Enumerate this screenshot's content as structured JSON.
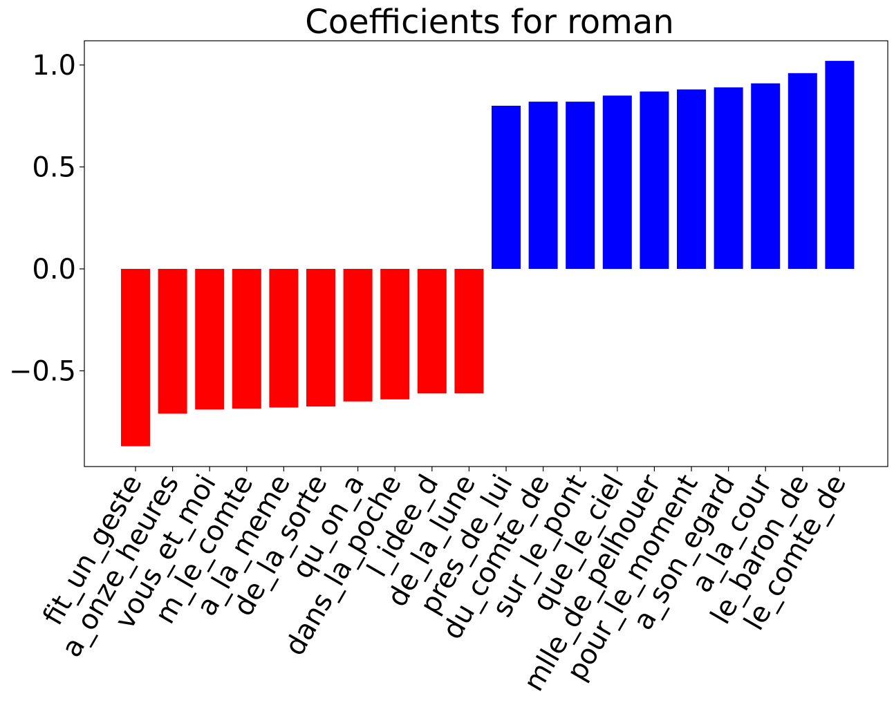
{
  "chart_data": {
    "type": "bar",
    "title": "Coefficients for roman",
    "xlabel": "",
    "ylabel": "",
    "ylim": [
      -0.97,
      1.12
    ],
    "yticks": [
      1.0,
      0.5,
      0.0,
      -0.5
    ],
    "ytick_labels": [
      "1.0",
      "0.5",
      "0.0",
      "−0.5"
    ],
    "grid": false,
    "colors": {
      "negative": "#ff0000",
      "positive": "#0000ff"
    },
    "categories": [
      "fit_un_geste",
      "a_onze_heures",
      "vous_et_moi",
      "m_le_comte",
      "a_la_meme",
      "de_la_sorte",
      "qu_on_a",
      "dans_la_poche",
      "l_idee_d",
      "de_la_lune",
      "pres_de_lui",
      "du_comte_de",
      "sur_le_pont",
      "que_le_ciel",
      "mlle_de_pelhouer",
      "pour_le_moment",
      "a_son_egard",
      "a_la_cour",
      "le_baron_de",
      "le_comte_de"
    ],
    "values": [
      -0.87,
      -0.71,
      -0.69,
      -0.685,
      -0.68,
      -0.675,
      -0.65,
      -0.64,
      -0.61,
      -0.61,
      0.8,
      0.82,
      0.82,
      0.85,
      0.87,
      0.88,
      0.89,
      0.91,
      0.96,
      1.02
    ]
  }
}
